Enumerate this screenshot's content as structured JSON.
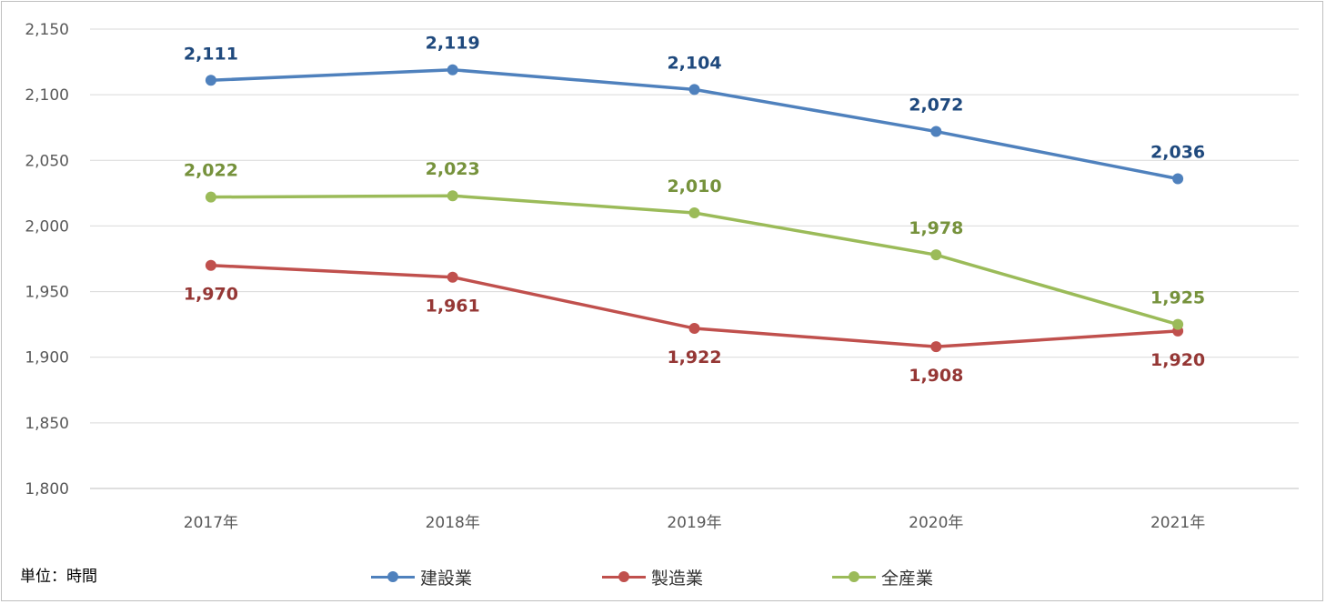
{
  "chart_data": {
    "type": "line",
    "categories": [
      "2017年",
      "2018年",
      "2019年",
      "2020年",
      "2021年"
    ],
    "series": [
      {
        "name": "建設業",
        "values": [
          2111,
          2119,
          2104,
          2072,
          2036
        ],
        "color": "#4f81bd",
        "label_color": "#1f497d",
        "labels": [
          "2,111",
          "2,119",
          "2,104",
          "2,072",
          "2,036"
        ]
      },
      {
        "name": "製造業",
        "values": [
          1970,
          1961,
          1922,
          1908,
          1920
        ],
        "color": "#c0504d",
        "label_color": "#953735",
        "labels": [
          "1,970",
          "1,961",
          "1,922",
          "1,908",
          "1,920"
        ]
      },
      {
        "name": "全産業",
        "values": [
          2022,
          2023,
          2010,
          1978,
          1925
        ],
        "color": "#9bbb59",
        "label_color": "#76923c",
        "labels": [
          "2,022",
          "2,023",
          "2,010",
          "1,978",
          "1,925"
        ]
      }
    ],
    "ylim": [
      1800,
      2150
    ],
    "yticks": [
      1800,
      1850,
      1900,
      1950,
      2000,
      2050,
      2100,
      2150
    ],
    "ytick_labels": [
      "1,800",
      "1,850",
      "1,900",
      "1,950",
      "2,000",
      "2,050",
      "2,100",
      "2,150"
    ],
    "grid": true,
    "legend_position": "bottom"
  },
  "unit_label": "単位：時間"
}
